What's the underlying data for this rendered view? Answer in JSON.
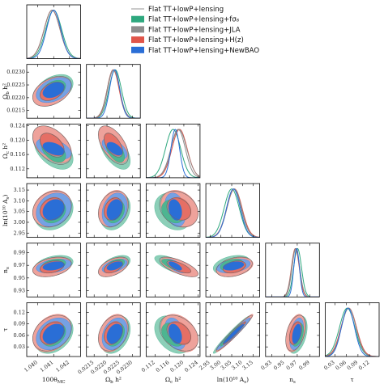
{
  "chart_data": {
    "type": "triangle-corner-plot",
    "parameters": [
      {
        "key": "theta",
        "label": "100θ_MC",
        "ticks": [
          1.04,
          1.041,
          1.042
        ],
        "tick_labels": [
          "1.040",
          "1.041",
          "1.042"
        ],
        "range": [
          1.0393,
          1.0427
        ]
      },
      {
        "key": "obh2",
        "label": "Ω_b h²",
        "ticks": [
          0.0215,
          0.022,
          0.0225,
          0.023
        ],
        "tick_labels": [
          "0.0215",
          "0.0220",
          "0.0225",
          "0.0230"
        ],
        "range": [
          0.0212,
          0.0233
        ]
      },
      {
        "key": "och2",
        "label": "Ω_c h²",
        "ticks": [
          0.112,
          0.116,
          0.12,
          0.124
        ],
        "tick_labels": [
          "0.112",
          "0.116",
          "0.120",
          "0.124"
        ],
        "range": [
          0.1095,
          0.1245
        ]
      },
      {
        "key": "lnAs",
        "label": "ln(10¹⁰ A_s)",
        "ticks": [
          2.95,
          3.0,
          3.05,
          3.1,
          3.15
        ],
        "tick_labels": [
          "2.95",
          "3.00",
          "3.05",
          "3.10",
          "3.15"
        ],
        "range": [
          2.93,
          3.18
        ]
      },
      {
        "key": "ns",
        "label": "n_s",
        "ticks": [
          0.93,
          0.95,
          0.97,
          0.99
        ],
        "tick_labels": [
          "0.93",
          "0.95",
          "0.97",
          "0.99"
        ],
        "range": [
          0.92,
          1.005
        ]
      },
      {
        "key": "tau",
        "label": "τ",
        "ticks": [
          0.03,
          0.06,
          0.09,
          0.12
        ],
        "tick_labels": [
          "0.03",
          "0.06",
          "0.09",
          "0.12"
        ],
        "range": [
          0.005,
          0.145
        ]
      }
    ],
    "legend": {
      "position": "top-right",
      "entries": [
        {
          "name": "Flat TT+lowP+lensing",
          "color": "#888888",
          "style": "line"
        },
        {
          "name": "Flat TT+lowP+lensing+fσ₈",
          "color": "#2ea87e",
          "style": "patch"
        },
        {
          "name": "Flat TT+lowP+lensing+JLA",
          "color": "#8e8e8e",
          "style": "patch"
        },
        {
          "name": "Flat TT+lowP+lensing+H(z)",
          "color": "#e0554a",
          "style": "patch"
        },
        {
          "name": "Flat TT+lowP+lensing+NewBAO",
          "color": "#2a6ed6",
          "style": "patch"
        }
      ]
    },
    "series": [
      {
        "name": "Flat TT+lowP+lensing",
        "color": "#888888",
        "mean": [
          1.0409,
          0.02225,
          0.1186,
          3.062,
          0.9675,
          0.066
        ],
        "sigma": [
          0.0005,
          0.00024,
          0.0022,
          0.034,
          0.0064,
          0.019
        ]
      },
      {
        "name": "Flat TT+lowP+lensing+fσ₈",
        "color": "#2ea87e",
        "mean": [
          1.041,
          0.02232,
          0.117,
          3.05,
          0.9705,
          0.062
        ],
        "sigma": [
          0.0005,
          0.00024,
          0.0021,
          0.035,
          0.0062,
          0.02
        ]
      },
      {
        "name": "Flat TT+lowP+lensing+JLA",
        "color": "#8e8e8e",
        "mean": [
          1.0409,
          0.02226,
          0.1184,
          3.06,
          0.9678,
          0.066
        ],
        "sigma": [
          0.0005,
          0.00023,
          0.002,
          0.034,
          0.006,
          0.019
        ]
      },
      {
        "name": "Flat TT+lowP+lensing+H(z)",
        "color": "#e0554a",
        "mean": [
          1.0409,
          0.02224,
          0.1188,
          3.063,
          0.967,
          0.066
        ],
        "sigma": [
          0.0005,
          0.00023,
          0.0021,
          0.035,
          0.0062,
          0.02
        ]
      },
      {
        "name": "Flat TT+lowP+lensing+NewBAO",
        "color": "#2a6ed6",
        "mean": [
          1.041,
          0.0223,
          0.1176,
          3.058,
          0.969,
          0.064
        ],
        "sigma": [
          0.00045,
          0.0002,
          0.0012,
          0.032,
          0.0045,
          0.017
        ]
      }
    ],
    "correlations": [
      [
        1.0,
        0.4,
        -0.45,
        0.2,
        0.35,
        0.3
      ],
      [
        0.4,
        1.0,
        -0.55,
        0.25,
        0.5,
        0.3
      ],
      [
        -0.45,
        -0.55,
        1.0,
        -0.25,
        -0.7,
        -0.35
      ],
      [
        0.2,
        0.25,
        -0.25,
        1.0,
        0.35,
        0.97
      ],
      [
        0.35,
        0.5,
        -0.7,
        0.35,
        1.0,
        0.4
      ],
      [
        0.3,
        0.3,
        -0.35,
        0.97,
        0.4,
        1.0
      ]
    ],
    "levels": [
      "68%",
      "95%"
    ]
  }
}
